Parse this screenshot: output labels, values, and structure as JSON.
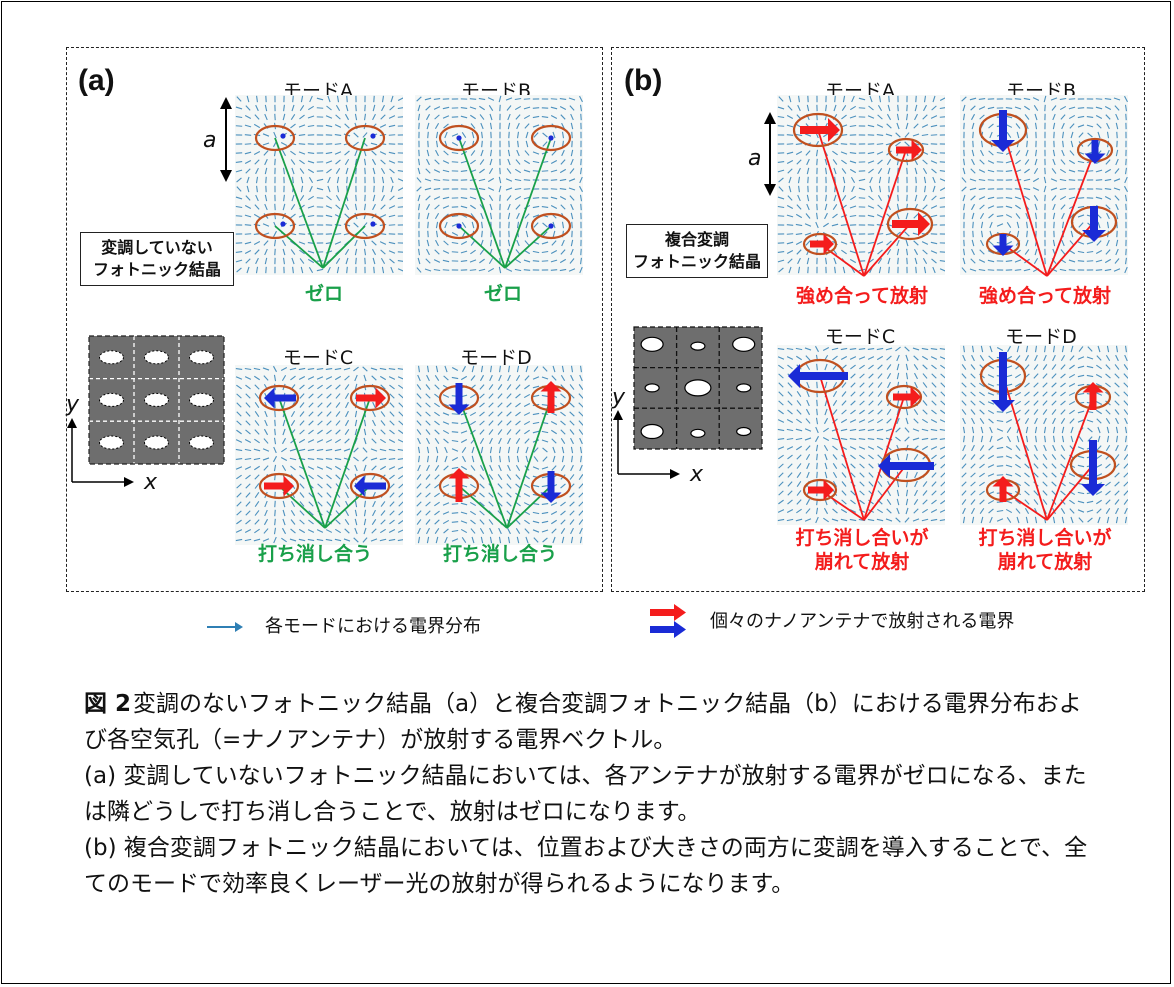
{
  "panel_a": {
    "label": "(a)",
    "structure_label_lines": [
      "変調していない",
      "フォトニック結晶"
    ],
    "modes": [
      {
        "title": "モードA",
        "result": "ゼロ"
      },
      {
        "title": "モードB",
        "result": "ゼロ"
      },
      {
        "title": "モードC",
        "result": "打ち消し合う"
      },
      {
        "title": "モードD",
        "result": "打ち消し合う"
      }
    ],
    "lattice_constant": "a",
    "axis_x": "x",
    "axis_y": "y"
  },
  "panel_b": {
    "label": "(b)",
    "structure_label_lines": [
      "複合変調",
      "フォトニック結晶"
    ],
    "modes": [
      {
        "title": "モードA",
        "result_lines": [
          "強め合って放射"
        ]
      },
      {
        "title": "モードB",
        "result_lines": [
          "強め合って放射"
        ]
      },
      {
        "title": "モードC",
        "result_lines": [
          "打ち消し合いが",
          "崩れて放射"
        ]
      },
      {
        "title": "モードD",
        "result_lines": [
          "打ち消し合いが",
          "崩れて放射"
        ]
      }
    ],
    "lattice_constant": "a",
    "axis_x": "x",
    "axis_y": "y"
  },
  "legend": {
    "field_distribution": "各モードにおける電界分布",
    "antenna_field": "個々のナノアンテナで放射される電界"
  },
  "caption": {
    "figure_label": "図 2",
    "figure_title": "変調のないフォトニック結晶（a）と複合変調フォトニック結晶（b）における電界分布および各空気孔（=ナノアンテナ）が放射する電界ベクトル。",
    "line_a": "(a) 変調していないフォトニック結晶においては、各アンテナが放射する電界がゼロになる、または隣どうしで打ち消し合うことで、放射はゼロになります。",
    "line_b": "(b) 複合変調フォトニック結晶においては、位置および大きさの両方に変調を導入することで、全てのモードで効率良くレーザー光の放射が得られるようになります。"
  },
  "colors": {
    "field_arrows": "#2f7fb4",
    "hole_outline": "#c0501f",
    "green_line": "#19a04a",
    "red": "#f41c1c",
    "blue": "#1a2bd6",
    "lattice_gray": "#6e6e6e"
  }
}
